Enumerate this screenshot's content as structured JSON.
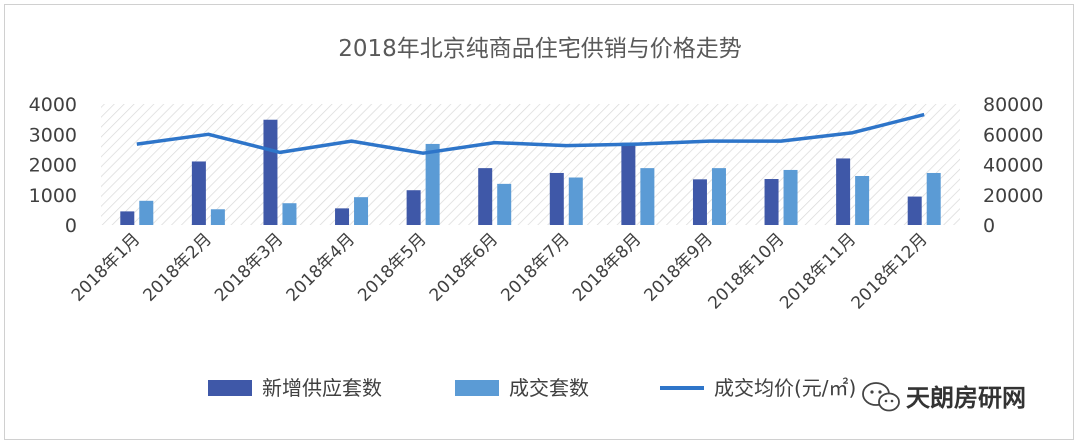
{
  "chart_data": {
    "type": "bar+line",
    "title": "2018年北京纯商品住宅供销与价格走势",
    "categories": [
      "2018年1月",
      "2018年2月",
      "2018年3月",
      "2018年4月",
      "2018年5月",
      "2018年6月",
      "2018年7月",
      "2018年8月",
      "2018年9月",
      "2018年10月",
      "2018年11月",
      "2018年12月"
    ],
    "series": [
      {
        "name": "新增供应套数",
        "type": "bar",
        "axis": "left",
        "color": "#3f58a8",
        "values": [
          450,
          2100,
          3480,
          550,
          1150,
          1880,
          1720,
          2720,
          1510,
          1520,
          2200,
          940
        ]
      },
      {
        "name": "成交套数",
        "type": "bar",
        "axis": "left",
        "color": "#5b9bd5",
        "values": [
          800,
          520,
          720,
          920,
          2680,
          1360,
          1570,
          1880,
          1880,
          1820,
          1620,
          1720
        ]
      },
      {
        "name": "成交均价(元/㎡)",
        "type": "line",
        "axis": "right",
        "color": "#2e75c9",
        "values": [
          53500,
          60000,
          48000,
          55500,
          47500,
          54500,
          52500,
          53500,
          55500,
          55500,
          61000,
          73000
        ]
      }
    ],
    "left_axis": {
      "ylim": [
        0,
        4000
      ],
      "ticks": [
        "0",
        "1000",
        "2000",
        "3000",
        "4000"
      ]
    },
    "right_axis": {
      "ylim": [
        0,
        80000
      ],
      "ticks": [
        "0",
        "20000",
        "40000",
        "60000",
        "80000"
      ]
    },
    "legend_position": "bottom",
    "plot_background": "diagonal-hatch",
    "legend": {
      "items": [
        {
          "label": "新增供应套数",
          "kind": "bar",
          "color": "#3f58a8"
        },
        {
          "label": "成交套数",
          "kind": "bar",
          "color": "#5b9bd5"
        },
        {
          "label": "成交均价(元/㎡)",
          "kind": "line",
          "color": "#2e75c9"
        }
      ]
    }
  },
  "watermark": {
    "text": "天朗房研网",
    "icon": "wechat-icon"
  }
}
